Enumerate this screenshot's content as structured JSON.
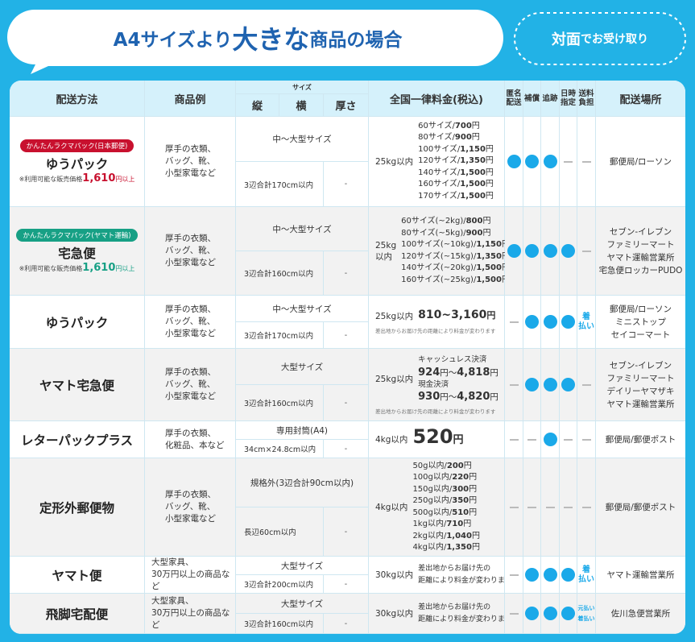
{
  "header": {
    "title": [
      "A4サイズより",
      "大きな",
      "商品の場合"
    ],
    "badge": [
      "対面",
      "でお受け取り"
    ]
  },
  "table": {
    "columns": {
      "method": "配送方法",
      "example": "商品例",
      "size": "サイズ",
      "size_parts": [
        "縦",
        "横",
        "厚さ"
      ],
      "price": "全国一律料金(税込)",
      "features": [
        "匿名配送",
        "補償",
        "追跡",
        "日時指定",
        "送料負担"
      ],
      "place": "配送場所"
    },
    "rows": [
      {
        "badge": "かんたんラクマパック(日本郵便)",
        "color": "#c8102e",
        "name": "ゆうパック",
        "note": {
          "prefix": "※利用可能な販売価格",
          "price": "1,610",
          "suffix": "円以上"
        },
        "example": [
          "厚手の衣類、",
          "バッグ、靴、",
          "小型家電など"
        ],
        "size": {
          "label": "中〜大型サイズ",
          "total": "3辺合計170cm以内",
          "thickness": "-"
        },
        "price": {
          "weight": [
            "25kg以内"
          ],
          "tiers": [
            {
              "label": "60サイズ/",
              "price": "700",
              "unit": "円"
            },
            {
              "label": "80サイズ/",
              "price": "900",
              "unit": "円"
            },
            {
              "label": "100サイズ/",
              "price": "1,150",
              "unit": "円"
            },
            {
              "label": "120サイズ/",
              "price": "1,350",
              "unit": "円"
            },
            {
              "label": "140サイズ/",
              "price": "1,500",
              "unit": "円"
            },
            {
              "label": "160サイズ/",
              "price": "1,500",
              "unit": "円"
            },
            {
              "label": "170サイズ/",
              "price": "1,500",
              "unit": "円"
            }
          ]
        },
        "place": [
          "郵便局/ローソン"
        ]
      },
      {
        "badge": "かんたんラクマパック(ヤマト運輸)",
        "color": "#17a085",
        "name": "宅急便",
        "note": {
          "prefix": "※利用可能な販売価格",
          "price": "1,610",
          "suffix": "円以上"
        },
        "example": [
          "厚手の衣類、",
          "バッグ、靴、",
          "小型家電など"
        ],
        "size": {
          "label": "中〜大型サイズ",
          "total": "3辺合計160cm以内",
          "thickness": "-"
        },
        "price": {
          "weight": [
            "25kg",
            "以内"
          ],
          "tiers": [
            {
              "label": "60サイズ(~2kg)/",
              "price": "800",
              "unit": "円"
            },
            {
              "label": "80サイズ(~5kg)/",
              "price": "900",
              "unit": "円"
            },
            {
              "label": "100サイズ(~10kg)/",
              "price": "1,150",
              "unit": "円"
            },
            {
              "label": "120サイズ(~15kg)/",
              "price": "1,350",
              "unit": "円"
            },
            {
              "label": "140サイズ(~20kg)/",
              "price": "1,500",
              "unit": "円"
            },
            {
              "label": "160サイズ(~25kg)/",
              "price": "1,500",
              "unit": "円"
            }
          ]
        },
        "place": [
          "セブン-イレブン",
          "ファミリーマート",
          "ヤマト運輸営業所",
          "宅急便ロッカーPUDO"
        ]
      },
      {
        "name": "ゆうパック",
        "example": [
          "厚手の衣類、",
          "バッグ、靴、",
          "小型家電など"
        ],
        "size": {
          "label": "中〜大型サイズ",
          "total": "3辺合計170cm以内",
          "thickness": "-"
        },
        "price": {
          "weight": [
            "25kg以内"
          ],
          "range": {
            "price": "810~3,160",
            "unit": "円"
          },
          "footnote": "差出地からお届け先の距離により料金が変わります"
        },
        "fee": [
          "着",
          "払い"
        ],
        "place": [
          "郵便局/ローソン",
          "ミニストップ",
          "セイコーマート"
        ]
      },
      {
        "name": "ヤマト宅急便",
        "example": [
          "厚手の衣類、",
          "バッグ、靴、",
          "小型家電など"
        ],
        "size": {
          "label": "大型サイズ",
          "total": "3辺合計160cm以内",
          "thickness": "-"
        },
        "price": {
          "weight": [
            "25kg以内"
          ],
          "options": [
            {
              "label": "キャッシュレス決済",
              "min": "924",
              "sep": "円～",
              "max": "4,818",
              "unit": "円"
            },
            {
              "label": "現金決済",
              "min": "930",
              "sep": "円～",
              "max": "4,820",
              "unit": "円"
            }
          ],
          "footnote": "差出地からお届け先の距離により料金が変わります"
        },
        "place": [
          "セブン-イレブン",
          "ファミリーマート",
          "デイリーヤマザキ",
          "ヤマト運輸営業所"
        ]
      },
      {
        "name": "レターパックプラス",
        "example": [
          "厚手の衣類、",
          "化粧品、本など"
        ],
        "size": {
          "label": "専用封筒(A4)",
          "total": "34cm×24.8cm以内",
          "thickness": "-"
        },
        "price": {
          "weight": [
            "4kg以内"
          ],
          "amount": {
            "price": "520",
            "unit": "円"
          }
        },
        "place": [
          "郵便局/郵便ポスト"
        ]
      },
      {
        "name": "定形外郵便物",
        "example": [
          "厚手の衣類、",
          "バッグ、靴、",
          "小型家電など"
        ],
        "size": {
          "label": "規格外(3辺合計90cm以内)",
          "total": "長辺60cm以内",
          "thickness": "-"
        },
        "price": {
          "weight": [
            "4kg以内"
          ],
          "tiers": [
            {
              "label": "50g以内/",
              "price": "200",
              "unit": "円"
            },
            {
              "label": "100g以内/",
              "price": "220",
              "unit": "円"
            },
            {
              "label": "150g以内/",
              "price": "300",
              "unit": "円"
            },
            {
              "label": "250g以内/",
              "price": "350",
              "unit": "円"
            },
            {
              "label": "500g以内/",
              "price": "510",
              "unit": "円"
            },
            {
              "label": "1kg以内/",
              "price": "710",
              "unit": "円"
            },
            {
              "label": "2kg以内/",
              "price": "1,040",
              "unit": "円"
            },
            {
              "label": "4kg以内/",
              "price": "1,350",
              "unit": "円"
            }
          ]
        },
        "place": [
          "郵便局/郵便ポスト"
        ]
      },
      {
        "name": "ヤマト便",
        "example": [
          "大型家具、",
          "30万円以上の商品など"
        ],
        "size": {
          "label": "大型サイズ",
          "total": "3辺合計200cm以内",
          "thickness": "-"
        },
        "price": {
          "weight": [
            "30kg以内"
          ],
          "note": [
            "差出地からお届け先の",
            "距離により料金が変わります"
          ]
        },
        "fee": [
          "着",
          "払い"
        ],
        "place": [
          "ヤマト運輸営業所"
        ]
      },
      {
        "name": "飛脚宅配便",
        "example": [
          "大型家具、",
          "30万円以上の商品など"
        ],
        "size": {
          "label": "大型サイズ",
          "total": "3辺合計160cm以内",
          "thickness": "-"
        },
        "price": {
          "weight": [
            "30kg以内"
          ],
          "note": [
            "差出地からお届け先の",
            "距離により料金が変わります"
          ]
        },
        "fee": [
          "元払い",
          "着払い"
        ],
        "place": [
          "佐川急便営業所"
        ]
      }
    ]
  }
}
